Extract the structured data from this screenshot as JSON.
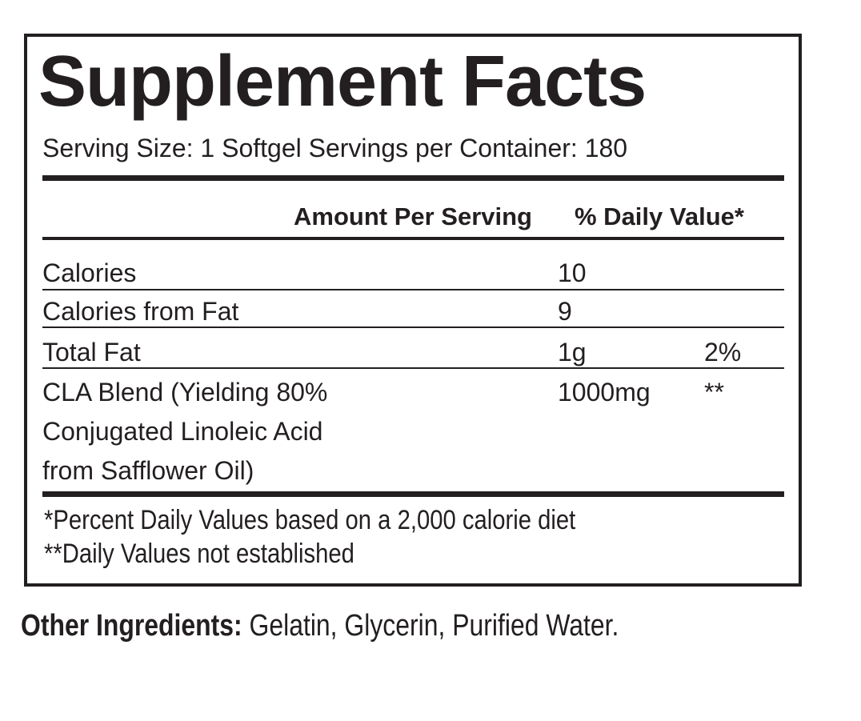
{
  "title": "Supplement Facts",
  "serving": "Serving Size: 1 Softgel  Servings per Container: 180",
  "header": {
    "amount": "Amount Per Serving",
    "dv": "% Daily Value*"
  },
  "rows": [
    {
      "name": "Calories",
      "amount": "10",
      "dv": ""
    },
    {
      "name": "Calories from Fat",
      "amount": "9",
      "dv": ""
    },
    {
      "name": "Total Fat",
      "amount": "1g",
      "dv": "2%"
    },
    {
      "name_lines": [
        "CLA Blend (Yielding 80%",
        "Conjugated Linoleic Acid",
        "from Safflower Oil)"
      ],
      "amount": "1000mg",
      "dv": "**"
    }
  ],
  "footnotes": [
    "*Percent Daily Values based on a 2,000 calorie diet",
    "**Daily Values not established"
  ],
  "other_ingredients": {
    "label": "Other Ingredients:",
    "value": " Gelatin, Glycerin, Purified Water."
  }
}
